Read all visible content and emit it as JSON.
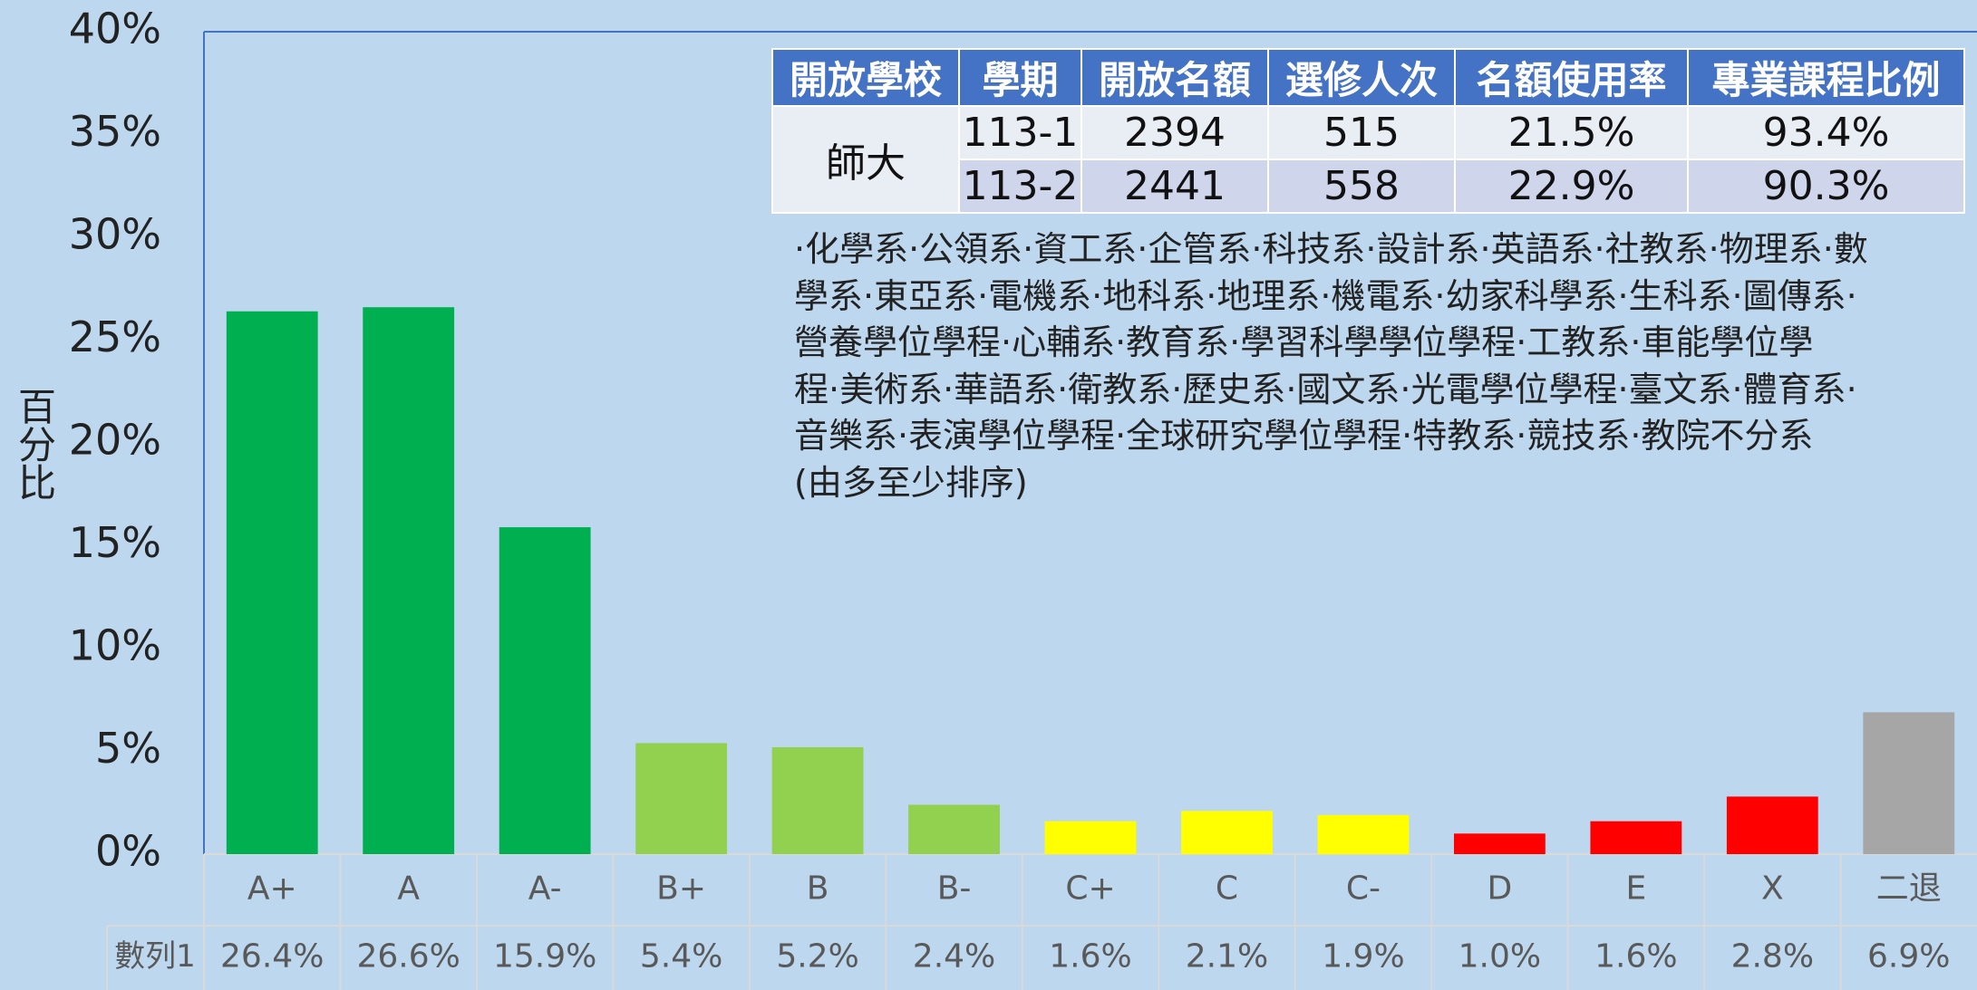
{
  "chart_data": {
    "type": "bar",
    "y_label": "百分比",
    "categories": [
      "A+",
      "A",
      "A-",
      "B+",
      "B",
      "B-",
      "C+",
      "C",
      "C-",
      "D",
      "E",
      "X",
      "二退"
    ],
    "series_name": "數列1",
    "values": [
      26.4,
      26.6,
      15.9,
      5.4,
      5.2,
      2.4,
      1.6,
      2.1,
      1.9,
      1.0,
      1.6,
      2.8,
      6.9
    ],
    "value_labels": [
      "26.4%",
      "26.6%",
      "15.9%",
      "5.4%",
      "5.2%",
      "2.4%",
      "1.6%",
      "2.1%",
      "1.9%",
      "1.0%",
      "1.6%",
      "2.8%",
      "6.9%"
    ],
    "colors": [
      "#00b050",
      "#00b050",
      "#00b050",
      "#92d050",
      "#92d050",
      "#92d050",
      "#ffff00",
      "#ffff00",
      "#ffff00",
      "#ff0000",
      "#ff0000",
      "#ff0000",
      "#a6a6a6"
    ],
    "ylim": [
      0,
      40
    ],
    "yticks": [
      {
        "value": 0,
        "label": "0%"
      },
      {
        "value": 5,
        "label": "5%"
      },
      {
        "value": 10,
        "label": "10%"
      },
      {
        "value": 15,
        "label": "15%"
      },
      {
        "value": 20,
        "label": "20%"
      },
      {
        "value": 25,
        "label": "25%"
      },
      {
        "value": 30,
        "label": "30%"
      },
      {
        "value": 35,
        "label": "35%"
      },
      {
        "value": 40,
        "label": "40%"
      }
    ]
  },
  "inset_table": {
    "header": [
      "開放學校",
      "學期",
      "開放名額",
      "選修人次",
      "名額使用率",
      "專業課程比例"
    ],
    "rows": [
      [
        "師大",
        "113-1",
        "2394",
        "515",
        "21.5%",
        "93.4%"
      ],
      [
        "113-2",
        "2441",
        "558",
        "22.9%",
        "90.3%"
      ]
    ]
  },
  "departments_lines": [
    "·化學系·公領系·資工系·企管系·科技系·設計系·英語系·社教系·物理系·數",
    "學系·東亞系·電機系·地科系·地理系·機電系·幼家科學系·生科系·圖傳系·",
    "營養學位學程·心輔系·教育系·學習科學學位學程·工教系·車能學位學",
    "程·美術系·華語系·衛教系·歷史系·國文系·光電學位學程·臺文系·體育系·",
    "音樂系·表演學位學程·全球研究學位學程·特教系·競技系·教院不分系",
    "(由多至少排序)"
  ]
}
